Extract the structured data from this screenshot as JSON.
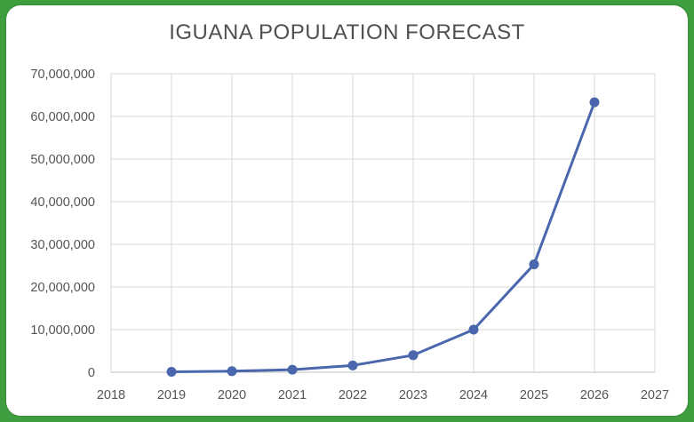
{
  "chart_data": {
    "type": "line",
    "title": "IGUANA POPULATION FORECAST",
    "x": [
      2019,
      2020,
      2021,
      2022,
      2023,
      2024,
      2025,
      2026
    ],
    "series": [
      {
        "values": [
          100000,
          250000,
          600000,
          1600000,
          4000000,
          10000000,
          25300000,
          63300000
        ]
      }
    ],
    "xlim": [
      2018,
      2027
    ],
    "ylim": [
      0,
      70000000
    ],
    "x_ticks": [
      "2018",
      "2019",
      "2020",
      "2021",
      "2022",
      "2023",
      "2024",
      "2025",
      "2026",
      "2027"
    ],
    "y_ticks": [
      "0",
      "10,000,000",
      "20,000,000",
      "30,000,000",
      "40,000,000",
      "50,000,000",
      "60,000,000",
      "70,000,000"
    ],
    "xlabel": "",
    "ylabel": "",
    "grid": true,
    "legend": false,
    "colors": {
      "line": "#4a66ac",
      "grid": "#d9d9d9",
      "axis": "#bfbfbf"
    }
  }
}
